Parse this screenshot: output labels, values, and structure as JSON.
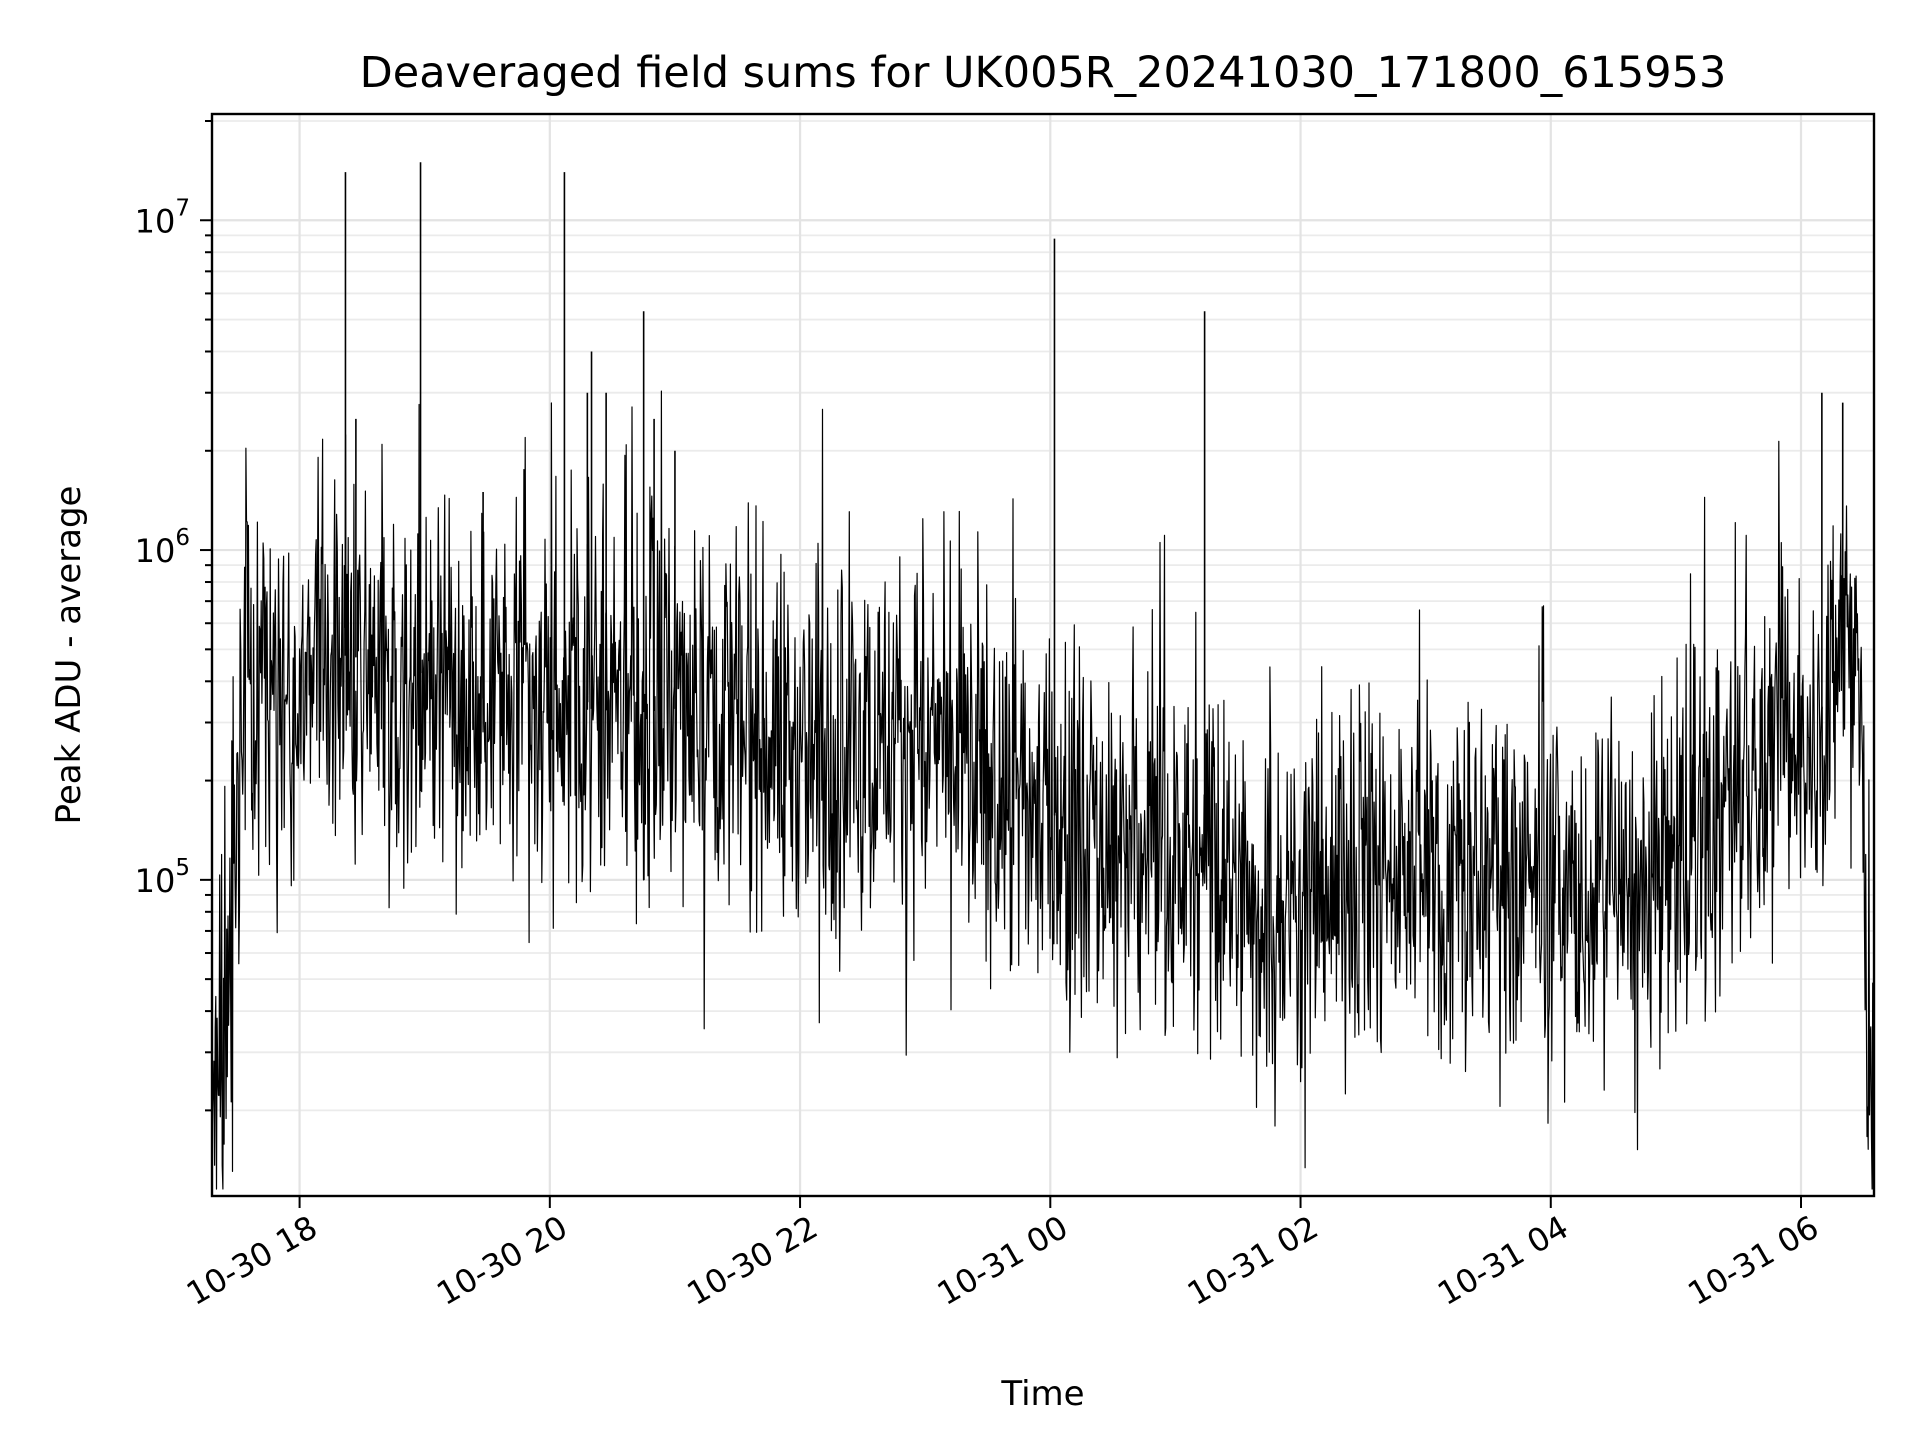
{
  "chart_data": {
    "type": "line",
    "title": "Deaveraged field sums for UK005R_20241030_171800_615953",
    "xlabel": "Time",
    "ylabel": "Peak ADU - average",
    "y_scale": "log",
    "ylim": [
      11000,
      21000000
    ],
    "xlim": [
      "2024-10-30 17:18",
      "2024-10-31 06:35"
    ],
    "grid": {
      "major": true,
      "minor_y": true
    },
    "line_color": "#000000",
    "x_ticks": [
      {
        "value": "2024-10-30 18:00",
        "label": "10-30 18"
      },
      {
        "value": "2024-10-30 20:00",
        "label": "10-30 20"
      },
      {
        "value": "2024-10-30 22:00",
        "label": "10-30 22"
      },
      {
        "value": "2024-10-31 00:00",
        "label": "10-31 00"
      },
      {
        "value": "2024-10-31 02:00",
        "label": "10-31 02"
      },
      {
        "value": "2024-10-31 04:00",
        "label": "10-31 04"
      },
      {
        "value": "2024-10-31 06:00",
        "label": "10-31 06"
      }
    ],
    "y_ticks": [
      {
        "value": 100000,
        "base": "10",
        "exp": "5"
      },
      {
        "value": 1000000,
        "base": "10",
        "exp": "6"
      },
      {
        "value": 10000000,
        "base": "10",
        "exp": "7"
      }
    ],
    "series": [
      {
        "points": [
          [
            "2024-10-30 17:18",
            16000
          ],
          [
            "2024-10-30 17:20",
            30000
          ],
          [
            "2024-10-30 17:22",
            20000
          ],
          [
            "2024-10-30 17:24",
            45000
          ],
          [
            "2024-10-30 17:26",
            70000
          ],
          [
            "2024-10-30 17:28",
            90000
          ],
          [
            "2024-10-30 17:30",
            180000
          ],
          [
            "2024-10-30 17:35",
            400000
          ],
          [
            "2024-10-30 17:45",
            420000
          ],
          [
            "2024-10-30 18:00",
            450000
          ],
          [
            "2024-10-30 18:20",
            480000
          ],
          [
            "2024-10-30 18:40",
            460000
          ],
          [
            "2024-10-30 19:00",
            420000
          ],
          [
            "2024-10-30 19:20",
            380000
          ],
          [
            "2024-10-30 19:40",
            320000
          ],
          [
            "2024-10-30 20:00",
            310000
          ],
          [
            "2024-10-30 20:20",
            330000
          ],
          [
            "2024-10-30 20:40",
            320000
          ],
          [
            "2024-10-30 21:00",
            330000
          ],
          [
            "2024-10-30 21:20",
            350000
          ],
          [
            "2024-10-30 21:40",
            300000
          ],
          [
            "2024-10-30 22:00",
            240000
          ],
          [
            "2024-10-30 22:20",
            230000
          ],
          [
            "2024-10-30 22:40",
            270000
          ],
          [
            "2024-10-30 23:00",
            270000
          ],
          [
            "2024-10-30 23:20",
            210000
          ],
          [
            "2024-10-30 23:40",
            170000
          ],
          [
            "2024-10-31 00:00",
            160000
          ],
          [
            "2024-10-31 00:20",
            130000
          ],
          [
            "2024-10-31 00:40",
            115000
          ],
          [
            "2024-10-31 01:00",
            120000
          ],
          [
            "2024-10-31 01:20",
            100000
          ],
          [
            "2024-10-31 01:40",
            80000
          ],
          [
            "2024-10-31 02:00",
            90000
          ],
          [
            "2024-10-31 02:20",
            95000
          ],
          [
            "2024-10-31 02:40",
            105000
          ],
          [
            "2024-10-31 03:00",
            105000
          ],
          [
            "2024-10-31 03:20",
            100000
          ],
          [
            "2024-10-31 03:40",
            95000
          ],
          [
            "2024-10-31 04:00",
            95000
          ],
          [
            "2024-10-31 04:20",
            85000
          ],
          [
            "2024-10-31 04:40",
            80000
          ],
          [
            "2024-10-31 05:00",
            110000
          ],
          [
            "2024-10-31 05:20",
            150000
          ],
          [
            "2024-10-31 05:40",
            200000
          ],
          [
            "2024-10-31 06:00",
            260000
          ],
          [
            "2024-10-31 06:10",
            330000
          ],
          [
            "2024-10-31 06:20",
            500000
          ],
          [
            "2024-10-31 06:28",
            420000
          ],
          [
            "2024-10-31 06:32",
            40000
          ],
          [
            "2024-10-31 06:35",
            15000
          ]
        ],
        "spikes": [
          [
            "2024-10-30 18:22",
            14000000
          ],
          [
            "2024-10-30 18:27",
            2500000
          ],
          [
            "2024-10-30 18:58",
            15000000
          ],
          [
            "2024-10-30 19:28",
            1500000
          ],
          [
            "2024-10-30 20:07",
            14000000
          ],
          [
            "2024-10-30 20:18",
            3000000
          ],
          [
            "2024-10-30 20:20",
            4000000
          ],
          [
            "2024-10-30 20:27",
            3000000
          ],
          [
            "2024-10-30 20:45",
            5300000
          ],
          [
            "2024-10-30 20:50",
            2500000
          ],
          [
            "2024-10-30 21:00",
            2000000
          ],
          [
            "2024-10-31 00:02",
            8800000
          ],
          [
            "2024-10-31 01:14",
            5300000
          ],
          [
            "2024-10-31 06:10",
            3000000
          ],
          [
            "2024-10-31 06:20",
            2800000
          ]
        ]
      }
    ]
  }
}
